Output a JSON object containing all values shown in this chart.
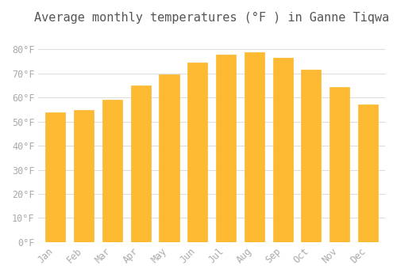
{
  "title": "Average monthly temperatures (°F ) in Ganne Tiqwa",
  "months": [
    "Jan",
    "Feb",
    "Mar",
    "Apr",
    "May",
    "Jun",
    "Jul",
    "Aug",
    "Sep",
    "Oct",
    "Nov",
    "Dec"
  ],
  "values": [
    54,
    55,
    59,
    65,
    69.5,
    74.5,
    78,
    79,
    76.5,
    71.5,
    64.5,
    57
  ],
  "bar_color": "#FDB931",
  "bar_edge_color": "#F5A800",
  "background_color": "#FFFFFF",
  "grid_color": "#DDDDDD",
  "tick_label_color": "#AAAAAA",
  "title_color": "#555555",
  "ylim": [
    0,
    88
  ],
  "yticks": [
    0,
    10,
    20,
    30,
    40,
    50,
    60,
    70,
    80
  ],
  "ytick_labels": [
    "0°F",
    "10°F",
    "20°F",
    "30°F",
    "40°F",
    "50°F",
    "60°F",
    "70°F",
    "80°F"
  ],
  "title_fontsize": 11,
  "tick_fontsize": 8.5
}
